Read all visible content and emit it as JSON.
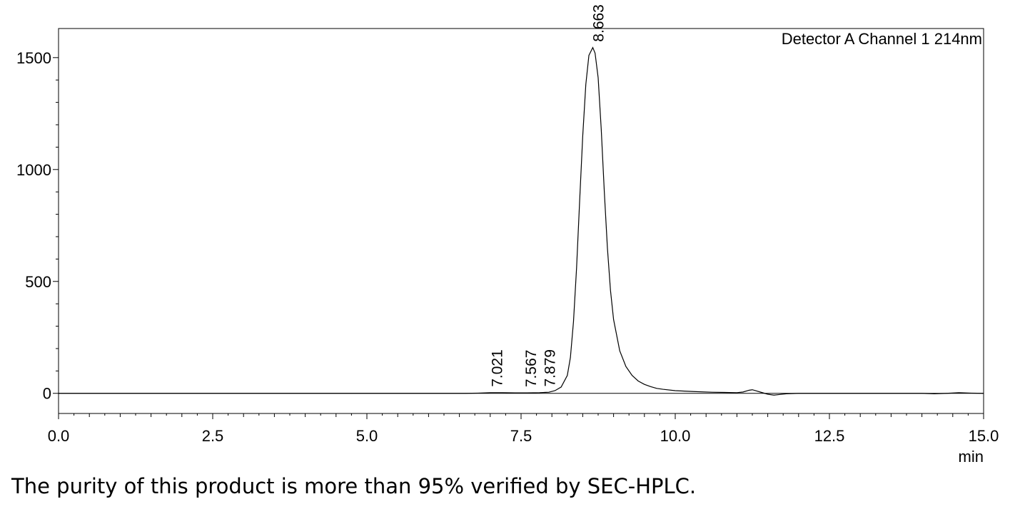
{
  "chart_data": {
    "type": "line",
    "title": "",
    "annotation": "Detector A Channel 1 214nm",
    "xlabel": "min",
    "ylabel": "",
    "xlim": [
      0.0,
      15.0
    ],
    "ylim": [
      -90,
      1630
    ],
    "x_ticks": [
      0.0,
      2.5,
      5.0,
      7.5,
      10.0,
      12.5,
      15.0
    ],
    "x_tick_labels": [
      "0.0",
      "2.5",
      "5.0",
      "7.5",
      "10.0",
      "12.5",
      "15.0"
    ],
    "y_ticks": [
      0,
      500,
      1000,
      1500
    ],
    "y_tick_labels": [
      "0",
      "500",
      "1000",
      "1500"
    ],
    "grid": false,
    "baseline": 0,
    "peaks": [
      {
        "label": "7.021",
        "retention_time": 7.021,
        "height": 3
      },
      {
        "label": "7.567",
        "retention_time": 7.567,
        "height": 2
      },
      {
        "label": "7.879",
        "retention_time": 7.879,
        "height": 4
      },
      {
        "label": "8.663",
        "retention_time": 8.663,
        "height": 1545
      }
    ],
    "series": [
      {
        "x": [
          0.0,
          6.6,
          6.8,
          7.0,
          7.2,
          7.4,
          7.6,
          7.8,
          7.95,
          8.05,
          8.15,
          8.25,
          8.3,
          8.35,
          8.4,
          8.45,
          8.5,
          8.55,
          8.6,
          8.663,
          8.7,
          8.75,
          8.8,
          8.85,
          8.9,
          8.95,
          9.0,
          9.1,
          9.2,
          9.3,
          9.4,
          9.5,
          9.6,
          9.7,
          9.8,
          10.0,
          10.3,
          10.6,
          11.0,
          11.1,
          11.2,
          11.25,
          11.3,
          11.4,
          11.5,
          11.6,
          11.7,
          11.8,
          12.0,
          12.5,
          13.0,
          14.0,
          14.2,
          14.4,
          14.6,
          14.8,
          15.0
        ],
        "y": [
          0,
          0,
          1,
          3,
          3,
          2,
          2,
          3,
          5,
          12,
          28,
          80,
          160,
          320,
          560,
          860,
          1150,
          1380,
          1510,
          1545,
          1520,
          1410,
          1180,
          900,
          650,
          460,
          330,
          190,
          120,
          80,
          55,
          40,
          30,
          22,
          18,
          12,
          8,
          5,
          3,
          6,
          14,
          16,
          12,
          4,
          -4,
          -8,
          -5,
          -2,
          0,
          0,
          0,
          0,
          -2,
          0,
          3,
          1,
          0
        ]
      }
    ]
  },
  "caption": "The purity of this product is more than 95% verified by SEC-HPLC."
}
